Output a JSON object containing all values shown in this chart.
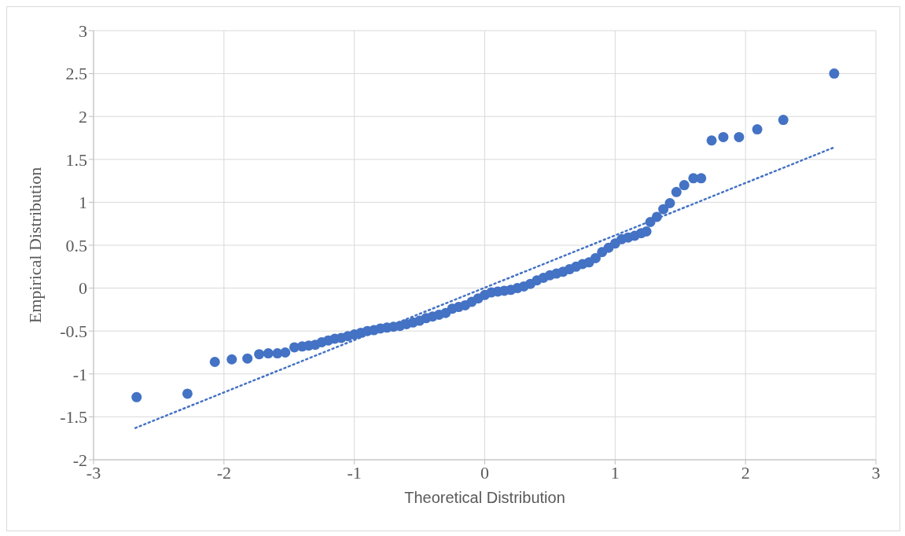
{
  "chart_data": {
    "type": "scatter",
    "xlabel": "Theoretical Distribution",
    "ylabel": "Empirical Distribution",
    "xlim": [
      -3,
      3
    ],
    "ylim": [
      -2,
      3
    ],
    "xticks": [
      -3,
      -2,
      -1,
      0,
      1,
      2,
      3
    ],
    "yticks": [
      -2,
      -1.5,
      -1,
      -0.5,
      0,
      0.5,
      1,
      1.5,
      2,
      2.5,
      3
    ],
    "grid": true,
    "marker": "circle",
    "series": [
      {
        "type": "scatter",
        "color": "#4472c4",
        "x": [
          -2.67,
          -2.28,
          -2.07,
          -1.94,
          -1.82,
          -1.73,
          -1.66,
          -1.59,
          -1.53,
          -1.46,
          -1.4,
          -1.35,
          -1.3,
          -1.25,
          -1.2,
          -1.15,
          -1.1,
          -1.05,
          -1,
          -0.95,
          -0.9,
          -0.85,
          -0.8,
          -0.75,
          -0.7,
          -0.65,
          -0.6,
          -0.55,
          -0.5,
          -0.45,
          -0.4,
          -0.35,
          -0.3,
          -0.25,
          -0.2,
          -0.15,
          -0.1,
          -0.05,
          0,
          0.05,
          0.1,
          0.15,
          0.2,
          0.25,
          0.3,
          0.35,
          0.4,
          0.45,
          0.5,
          0.55,
          0.6,
          0.65,
          0.7,
          0.75,
          0.8,
          0.85,
          0.9,
          0.95,
          1,
          1.05,
          1.1,
          1.15,
          1.2,
          1.24,
          1.27,
          1.32,
          1.37,
          1.42,
          1.47,
          1.53,
          1.6,
          1.66,
          1.74,
          1.83,
          1.95,
          2.09,
          2.29,
          2.68
        ],
        "values": [
          -1.27,
          -1.23,
          -0.86,
          -0.83,
          -0.82,
          -0.77,
          -0.76,
          -0.76,
          -0.75,
          -0.69,
          -0.68,
          -0.67,
          -0.66,
          -0.63,
          -0.61,
          -0.59,
          -0.58,
          -0.56,
          -0.54,
          -0.52,
          -0.5,
          -0.49,
          -0.47,
          -0.46,
          -0.45,
          -0.44,
          -0.42,
          -0.4,
          -0.38,
          -0.35,
          -0.33,
          -0.31,
          -0.29,
          -0.24,
          -0.22,
          -0.2,
          -0.16,
          -0.12,
          -0.08,
          -0.05,
          -0.04,
          -0.03,
          -0.02,
          0,
          0.02,
          0.05,
          0.09,
          0.12,
          0.15,
          0.17,
          0.19,
          0.22,
          0.25,
          0.28,
          0.3,
          0.35,
          0.42,
          0.47,
          0.52,
          0.57,
          0.59,
          0.61,
          0.64,
          0.66,
          0.77,
          0.83,
          0.92,
          0.99,
          1.12,
          1.2,
          1.28,
          1.28,
          1.72,
          1.76,
          1.76,
          1.85,
          1.96,
          2.5
        ]
      },
      {
        "type": "line",
        "color": "#4472c4",
        "line_style": "dotted",
        "marker": "none",
        "x": [
          -2.68,
          2.68
        ],
        "values": [
          -1.63,
          1.64
        ]
      }
    ]
  }
}
